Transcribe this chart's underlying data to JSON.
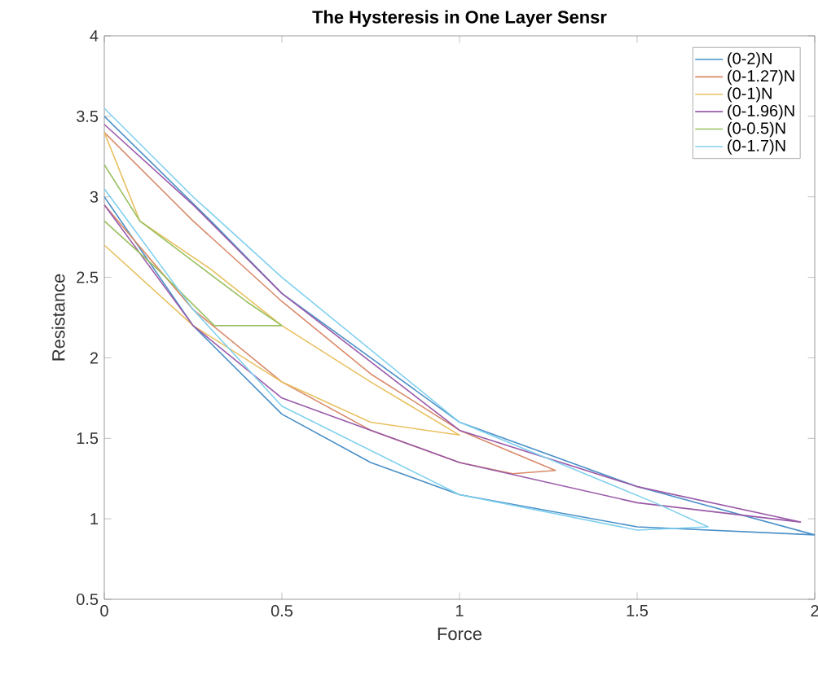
{
  "chart_data": {
    "type": "line",
    "title": "The Hysteresis in One Layer Sensr",
    "xlabel": "Force",
    "ylabel": "Resistance",
    "xlim": [
      0,
      2
    ],
    "ylim": [
      0.5,
      4
    ],
    "xticks": [
      0,
      0.5,
      1,
      1.5,
      2
    ],
    "yticks": [
      0.5,
      1,
      1.5,
      2,
      2.5,
      3,
      3.5,
      4
    ],
    "grid": false,
    "legend": "top right",
    "marker": "none",
    "line_style": "solid",
    "series": [
      {
        "name": "(0-2)N",
        "color": "#4a90c8",
        "x": [
          0,
          0.25,
          0.5,
          0.75,
          1,
          1.5,
          2,
          1.5,
          1,
          0.5,
          0.3,
          0
        ],
        "values": [
          3.0,
          2.2,
          1.65,
          1.35,
          1.15,
          0.95,
          0.9,
          1.2,
          1.6,
          2.4,
          2.85,
          3.5
        ]
      },
      {
        "name": "(0-1.27)N",
        "color": "#d98a6a",
        "x": [
          0,
          0.25,
          0.5,
          0.75,
          1,
          1.15,
          1.27,
          1,
          0.75,
          0.5,
          0.25,
          0
        ],
        "values": [
          2.95,
          2.3,
          1.85,
          1.55,
          1.35,
          1.28,
          1.3,
          1.55,
          1.9,
          2.35,
          2.85,
          3.4
        ]
      },
      {
        "name": "(0-1)N",
        "color": "#e8c060",
        "x": [
          0,
          0.25,
          0.5,
          0.75,
          1,
          0.75,
          0.5,
          0.3,
          0.1,
          0
        ],
        "values": [
          2.7,
          2.2,
          1.85,
          1.6,
          1.52,
          1.85,
          2.2,
          2.55,
          2.85,
          3.4
        ]
      },
      {
        "name": "(0-1.96)N",
        "color": "#9a5aa8",
        "x": [
          0,
          0.25,
          0.5,
          1,
          1.5,
          1.96,
          1.5,
          1,
          0.5,
          0.25,
          0
        ],
        "values": [
          2.95,
          2.2,
          1.75,
          1.35,
          1.1,
          0.98,
          1.2,
          1.55,
          2.4,
          2.95,
          3.45
        ]
      },
      {
        "name": "(0-0.5)N",
        "color": "#99c060",
        "x": [
          0,
          0.15,
          0.31,
          0.5,
          0.4,
          0.25,
          0.1,
          0
        ],
        "values": [
          2.85,
          2.55,
          2.2,
          2.2,
          2.35,
          2.6,
          2.85,
          3.2
        ]
      },
      {
        "name": "(0-1.7)N",
        "color": "#80d0ee",
        "x": [
          0,
          0.25,
          0.5,
          1,
          1.5,
          1.7,
          1.55,
          1,
          0.5,
          0.25,
          0
        ],
        "values": [
          3.05,
          2.3,
          1.7,
          1.15,
          0.93,
          0.95,
          1.1,
          1.6,
          2.5,
          3.0,
          3.55
        ]
      }
    ]
  }
}
